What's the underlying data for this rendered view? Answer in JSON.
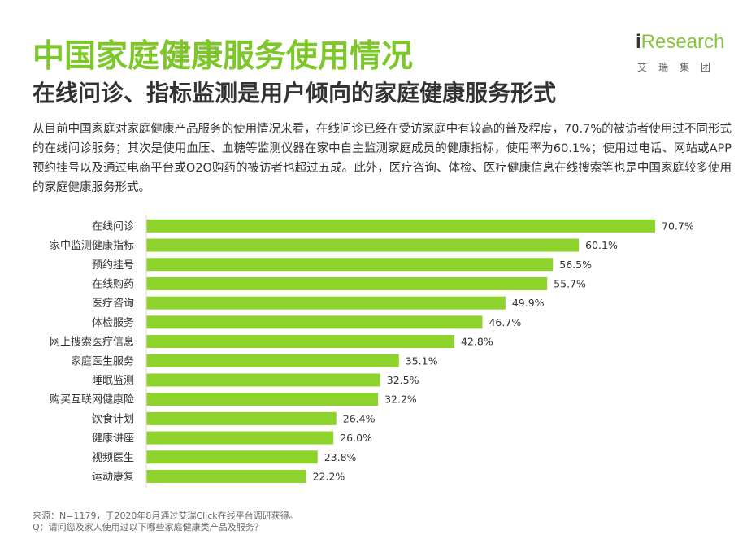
{
  "header": {
    "title": "中国家庭健康服务使用情况",
    "subtitle": "在线问诊、指标监测是用户倾向的家庭健康服务形式"
  },
  "logo": {
    "text_i": "i",
    "text_rest": "Research",
    "cn": "艾瑞集团"
  },
  "description": "从目前中国家庭对家庭健康产品服务的使用情况来看，在线问诊已经在受访家庭中有较高的普及程度，70.7%的被访者使用过不同形式的在线问诊服务；其次是使用血压、血糖等监测仪器在家中自主监测家庭成员的健康指标，使用率为60.1%；使用过电话、网站或APP预约挂号以及通过电商平台或O2O购药的被访者也超过五成。此外，医疗咨询、体检、医疗健康信息在线搜索等也是中国家庭较多使用的家庭健康服务形式。",
  "chart_data": {
    "type": "bar",
    "orientation": "horizontal",
    "categories": [
      "在线问诊",
      "家中监测健康指标",
      "预约挂号",
      "在线购药",
      "医疗咨询",
      "体检服务",
      "网上搜索医疗信息",
      "家庭医生服务",
      "睡眠监测",
      "购买互联网健康险",
      "饮食计划",
      "健康讲座",
      "视频医生",
      "运动康复"
    ],
    "values": [
      70.7,
      60.1,
      56.5,
      55.7,
      49.9,
      46.7,
      42.8,
      35.1,
      32.5,
      32.2,
      26.4,
      26.0,
      23.8,
      22.2
    ],
    "value_labels": [
      "70.7%",
      "60.1%",
      "56.5%",
      "55.7%",
      "49.9%",
      "46.7%",
      "42.8%",
      "35.1%",
      "32.5%",
      "32.2%",
      "26.4%",
      "26.0%",
      "23.8%",
      "22.2%"
    ],
    "unit": "%",
    "xlim": [
      0,
      70.7
    ],
    "grid": false,
    "bar_color": "#8ed22c"
  },
  "colors": {
    "title": "#7dc72a",
    "bar": "#8ed22c"
  },
  "footer": {
    "source": "来源：N=1179，于2020年8月通过艾瑞Click在线平台调研获得。",
    "question": "Q：请问您及家人使用过以下哪些家庭健康类产品及服务？"
  }
}
